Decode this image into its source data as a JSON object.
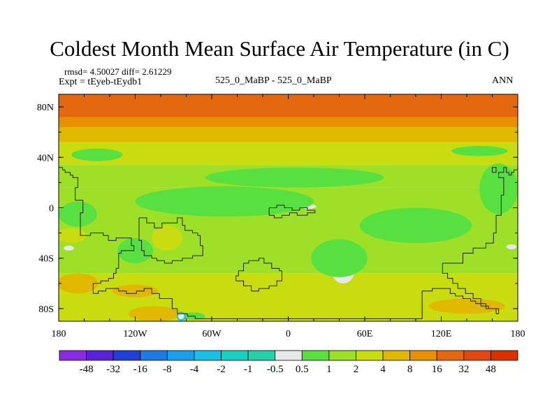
{
  "chart_data": {
    "type": "heatmap",
    "title": "Coldest Month Mean Surface Air Temperature (in C)",
    "stats": "rmsd= 4.50027  diff= 2.61229",
    "experiment": "Expt = tEyeb-tEydb1",
    "subtitle": "525_0_MaBP - 525_0_MaBP",
    "season": "ANN",
    "x_range": [
      -180,
      180
    ],
    "y_range": [
      -90,
      90
    ],
    "x_ticks": [
      {
        "value": -180,
        "label": "180"
      },
      {
        "value": -120,
        "label": "120W"
      },
      {
        "value": -60,
        "label": "60W"
      },
      {
        "value": 0,
        "label": "0"
      },
      {
        "value": 60,
        "label": "60E"
      },
      {
        "value": 120,
        "label": "120E"
      },
      {
        "value": 180,
        "label": "180"
      }
    ],
    "y_ticks": [
      {
        "value": 80,
        "label": "80N"
      },
      {
        "value": 40,
        "label": "40N"
      },
      {
        "value": 0,
        "label": "0"
      },
      {
        "value": -40,
        "label": "40S"
      },
      {
        "value": -80,
        "label": "80S"
      }
    ],
    "colorbar": {
      "labels": [
        "-48",
        "-32",
        "-16",
        "-8",
        "-4",
        "-2",
        "-1",
        "-0.5",
        "0.5",
        "1",
        "2",
        "4",
        "8",
        "16",
        "32",
        "48"
      ],
      "colors": [
        "#8a2be2",
        "#5a22d8",
        "#1e3fd8",
        "#1e78e6",
        "#1aa0ea",
        "#18c0e6",
        "#1ad0c0",
        "#28d0a8",
        "#e8e8e8",
        "#58e040",
        "#9ee028",
        "#c8dc10",
        "#e0b800",
        "#e89000",
        "#e46810",
        "#e04810",
        "#dc3000"
      ]
    },
    "bands": [
      {
        "lat_top": 90,
        "lat_bottom": 72,
        "color": "#e46810"
      },
      {
        "lat_top": 72,
        "lat_bottom": 64,
        "color": "#e89000"
      },
      {
        "lat_top": 64,
        "lat_bottom": 52,
        "color": "#e0b800"
      },
      {
        "lat_top": 52,
        "lat_bottom": 34,
        "color": "#c8dc10"
      },
      {
        "lat_top": 34,
        "lat_bottom": 16,
        "color": "#9ee028"
      },
      {
        "lat_top": 16,
        "lat_bottom": -52,
        "color": "#9ee028"
      },
      {
        "lat_top": -52,
        "lat_bottom": -72,
        "color": "#c8dc10"
      },
      {
        "lat_top": -72,
        "lat_bottom": -90,
        "color": "#c8dc10"
      }
    ],
    "patches": [
      {
        "lon": -153,
        "lat": 40,
        "rlon": 6,
        "rlat": 2,
        "color": "#e8e8e8"
      },
      {
        "lon": -60,
        "lat": 0,
        "rlon": 30,
        "rlat": 4,
        "color": "#e8e8e8"
      },
      {
        "lon": 15,
        "lat": 1,
        "rlon": 7,
        "rlat": 2,
        "color": "#e8e8e8"
      },
      {
        "lon": 98,
        "lat": -14,
        "rlon": 32,
        "rlat": 8,
        "color": "#e8e8e8"
      },
      {
        "lon": -122,
        "lat": -31,
        "rlon": 5,
        "rlat": 3,
        "color": "#e8e8e8"
      },
      {
        "lon": -172,
        "lat": -32,
        "rlon": 4,
        "rlat": 2,
        "color": "#e8e8e8"
      },
      {
        "lon": 175,
        "lat": -31,
        "rlon": 4,
        "rlat": 2,
        "color": "#e8e8e8"
      },
      {
        "lon": 43,
        "lat": -50,
        "rlon": 9,
        "rlat": 10,
        "color": "#e8e8e8"
      },
      {
        "lon": -84,
        "lat": -86,
        "rlon": 3,
        "rlat": 3,
        "color": "#e8e8e8"
      },
      {
        "lon": -77,
        "lat": -87,
        "rlon": 1,
        "rlat": 1,
        "color": "#e8e8e8"
      },
      {
        "lon": 40,
        "lat": -40,
        "rlon": 22,
        "rlat": 15,
        "color": "#58e040"
      },
      {
        "lon": 100,
        "lat": -14,
        "rlon": 44,
        "rlat": 14,
        "color": "#58e040"
      },
      {
        "lon": -50,
        "lat": 5,
        "rlon": 70,
        "rlat": 12,
        "color": "#58e040"
      },
      {
        "lon": 5,
        "lat": 24,
        "rlon": 70,
        "rlat": 8,
        "color": "#58e040"
      },
      {
        "lon": -120,
        "lat": -34,
        "rlon": 14,
        "rlat": 10,
        "color": "#58e040"
      },
      {
        "lon": -150,
        "lat": 42,
        "rlon": 20,
        "rlat": 5,
        "color": "#58e040"
      },
      {
        "lon": 150,
        "lat": 45,
        "rlon": 22,
        "rlat": 4,
        "color": "#58e040"
      },
      {
        "lon": -165,
        "lat": -5,
        "rlon": 15,
        "rlat": 10,
        "color": "#58e040"
      },
      {
        "lon": 165,
        "lat": 15,
        "rlon": 15,
        "rlat": 20,
        "color": "#58e040"
      },
      {
        "lon": -75,
        "lat": -86,
        "rlon": 10,
        "rlat": 3,
        "color": "#58e040"
      },
      {
        "lon": -170,
        "lat": -22,
        "rlon": 12,
        "rlat": 6,
        "color": "#c8dc10"
      },
      {
        "lon": -165,
        "lat": -60,
        "rlon": 16,
        "rlat": 8,
        "color": "#e0b800"
      },
      {
        "lon": -120,
        "lat": -66,
        "rlon": 18,
        "rlat": 5,
        "color": "#e0b800"
      },
      {
        "lon": -95,
        "lat": -24,
        "rlon": 12,
        "rlat": 10,
        "color": "#c8dc10"
      },
      {
        "lon": -105,
        "lat": -84,
        "rlon": 20,
        "rlat": 6,
        "color": "#e0b800"
      },
      {
        "lon": 140,
        "lat": -78,
        "rlon": 30,
        "rlat": 6,
        "color": "#e0b800"
      }
    ],
    "coastlines": [
      {
        "name": "pangea-outline",
        "points": [
          [
            -180,
            32
          ],
          [
            -177,
            32
          ],
          [
            -177,
            30
          ],
          [
            -175,
            30
          ],
          [
            -175,
            28
          ],
          [
            -171,
            28
          ],
          [
            -171,
            26
          ],
          [
            -169,
            26
          ],
          [
            -169,
            24
          ],
          [
            -165,
            24
          ],
          [
            -165,
            16
          ],
          [
            -167,
            16
          ],
          [
            -167,
            6
          ],
          [
            -161,
            6
          ],
          [
            -161,
            -4
          ],
          [
            -163,
            -4
          ],
          [
            -163,
            -22
          ],
          [
            -155,
            -22
          ],
          [
            -155,
            -20
          ],
          [
            -145,
            -20
          ],
          [
            -145,
            -22
          ],
          [
            -141,
            -22
          ],
          [
            -141,
            -26
          ],
          [
            -135,
            -26
          ],
          [
            -135,
            -24
          ],
          [
            -123,
            -24
          ],
          [
            -123,
            -30
          ],
          [
            -121,
            -30
          ],
          [
            -121,
            -34
          ],
          [
            -131,
            -34
          ],
          [
            -131,
            -36
          ],
          [
            -133,
            -36
          ],
          [
            -133,
            -48
          ],
          [
            -135,
            -48
          ],
          [
            -135,
            -52
          ],
          [
            -137,
            -52
          ],
          [
            -137,
            -56
          ],
          [
            -141,
            -56
          ],
          [
            -141,
            -58
          ],
          [
            -147,
            -58
          ],
          [
            -147,
            -60
          ],
          [
            -153,
            -60
          ],
          [
            -153,
            -68
          ],
          [
            -149,
            -68
          ],
          [
            -149,
            -66
          ],
          [
            -143,
            -66
          ],
          [
            -143,
            -64
          ],
          [
            -133,
            -64
          ],
          [
            -133,
            -66
          ],
          [
            -127,
            -66
          ],
          [
            -127,
            -68
          ],
          [
            -119,
            -68
          ],
          [
            -119,
            -66
          ],
          [
            -113,
            -66
          ],
          [
            -113,
            -64
          ],
          [
            -107,
            -64
          ],
          [
            -107,
            -68
          ],
          [
            -101,
            -68
          ],
          [
            -101,
            -72
          ],
          [
            -91,
            -72
          ],
          [
            -91,
            -80
          ],
          [
            -87,
            -80
          ],
          [
            -87,
            -84
          ],
          [
            -79,
            -84
          ],
          [
            -79,
            -86
          ],
          [
            -73,
            -86
          ],
          [
            -73,
            -88
          ],
          [
            60,
            -88
          ],
          [
            105,
            -88
          ],
          [
            105,
            -66
          ],
          [
            113,
            -66
          ],
          [
            113,
            -64
          ],
          [
            127,
            -64
          ],
          [
            127,
            -68
          ],
          [
            131,
            -68
          ],
          [
            131,
            -70
          ],
          [
            137,
            -70
          ],
          [
            137,
            -72
          ],
          [
            143,
            -72
          ],
          [
            143,
            -74
          ],
          [
            147,
            -74
          ],
          [
            147,
            -76
          ],
          [
            151,
            -76
          ],
          [
            151,
            -78
          ],
          [
            157,
            -78
          ],
          [
            157,
            -80
          ],
          [
            163,
            -80
          ],
          [
            163,
            -84
          ],
          [
            165,
            -84
          ],
          [
            165,
            -80
          ],
          [
            155,
            -80
          ],
          [
            155,
            -76
          ],
          [
            151,
            -76
          ],
          [
            151,
            -72
          ],
          [
            145,
            -72
          ],
          [
            145,
            -68
          ],
          [
            139,
            -68
          ],
          [
            139,
            -64
          ],
          [
            133,
            -64
          ],
          [
            133,
            -60
          ],
          [
            129,
            -60
          ],
          [
            129,
            -56
          ],
          [
            125,
            -56
          ],
          [
            125,
            -52
          ],
          [
            121,
            -52
          ],
          [
            121,
            -44
          ],
          [
            137,
            -44
          ],
          [
            137,
            -36
          ],
          [
            145,
            -36
          ],
          [
            145,
            -32
          ],
          [
            155,
            -32
          ],
          [
            155,
            -28
          ],
          [
            161,
            -28
          ],
          [
            161,
            -20
          ],
          [
            163,
            -20
          ],
          [
            163,
            -6
          ],
          [
            167,
            -6
          ],
          [
            167,
            10
          ],
          [
            169,
            10
          ],
          [
            169,
            24
          ],
          [
            165,
            24
          ],
          [
            165,
            28
          ],
          [
            169,
            28
          ],
          [
            169,
            32
          ],
          [
            171,
            32
          ],
          [
            171,
            28
          ],
          [
            173,
            28
          ],
          [
            173,
            26
          ],
          [
            175,
            26
          ],
          [
            175,
            28
          ],
          [
            177,
            28
          ],
          [
            177,
            30
          ],
          [
            180,
            30
          ]
        ]
      },
      {
        "name": "central-west-outline",
        "points": [
          [
            -117,
            -8
          ],
          [
            -111,
            -8
          ],
          [
            -111,
            -12
          ],
          [
            -105,
            -12
          ],
          [
            -105,
            -16
          ],
          [
            -99,
            -16
          ],
          [
            -99,
            -12
          ],
          [
            -87,
            -12
          ],
          [
            -87,
            -8
          ],
          [
            -83,
            -8
          ],
          [
            -83,
            -14
          ],
          [
            -81,
            -14
          ],
          [
            -81,
            -18
          ],
          [
            -75,
            -18
          ],
          [
            -75,
            -20
          ],
          [
            -71,
            -20
          ],
          [
            -71,
            -22
          ],
          [
            -69,
            -22
          ],
          [
            -69,
            -30
          ],
          [
            -67,
            -30
          ],
          [
            -67,
            -38
          ],
          [
            -75,
            -38
          ],
          [
            -75,
            -40
          ],
          [
            -83,
            -40
          ],
          [
            -83,
            -42
          ],
          [
            -91,
            -42
          ],
          [
            -91,
            -44
          ],
          [
            -97,
            -44
          ],
          [
            -97,
            -42
          ],
          [
            -103,
            -42
          ],
          [
            -103,
            -40
          ],
          [
            -107,
            -40
          ],
          [
            -107,
            -38
          ],
          [
            -113,
            -38
          ],
          [
            -113,
            -34
          ],
          [
            -115,
            -34
          ],
          [
            -115,
            -26
          ],
          [
            -117,
            -26
          ],
          [
            -117,
            -8
          ]
        ]
      },
      {
        "name": "central-east-outline",
        "points": [
          [
            -35,
            -44
          ],
          [
            -31,
            -44
          ],
          [
            -31,
            -42
          ],
          [
            -23,
            -42
          ],
          [
            -23,
            -40
          ],
          [
            -19,
            -40
          ],
          [
            -19,
            -44
          ],
          [
            -13,
            -44
          ],
          [
            -13,
            -48
          ],
          [
            -7,
            -48
          ],
          [
            -7,
            -50
          ],
          [
            -5,
            -50
          ],
          [
            -5,
            -58
          ],
          [
            -9,
            -58
          ],
          [
            -9,
            -62
          ],
          [
            -15,
            -62
          ],
          [
            -15,
            -64
          ],
          [
            -23,
            -64
          ],
          [
            -23,
            -66
          ],
          [
            -29,
            -66
          ],
          [
            -29,
            -62
          ],
          [
            -35,
            -62
          ],
          [
            -35,
            -58
          ],
          [
            -41,
            -58
          ],
          [
            -41,
            -54
          ],
          [
            -39,
            -54
          ],
          [
            -39,
            -50
          ],
          [
            -35,
            -50
          ],
          [
            -35,
            -44
          ]
        ]
      },
      {
        "name": "equator-outline",
        "points": [
          [
            -15,
            0
          ],
          [
            -9,
            0
          ],
          [
            -9,
            2
          ],
          [
            -3,
            2
          ],
          [
            -3,
            0
          ],
          [
            3,
            0
          ],
          [
            3,
            -2
          ],
          [
            9,
            -2
          ],
          [
            9,
            0
          ],
          [
            15,
            0
          ],
          [
            15,
            -2
          ],
          [
            21,
            -2
          ],
          [
            21,
            -4
          ],
          [
            15,
            -4
          ],
          [
            15,
            -6
          ],
          [
            7,
            -6
          ],
          [
            7,
            -4
          ],
          [
            1,
            -4
          ],
          [
            1,
            -6
          ],
          [
            -5,
            -6
          ],
          [
            -5,
            -8
          ],
          [
            -11,
            -8
          ],
          [
            -11,
            -6
          ],
          [
            -15,
            -6
          ],
          [
            -15,
            0
          ]
        ]
      },
      {
        "name": "east-island-outline",
        "points": [
          [
            160,
            28
          ],
          [
            163,
            28
          ],
          [
            163,
            32
          ],
          [
            160,
            32
          ],
          [
            160,
            28
          ]
        ]
      }
    ]
  }
}
